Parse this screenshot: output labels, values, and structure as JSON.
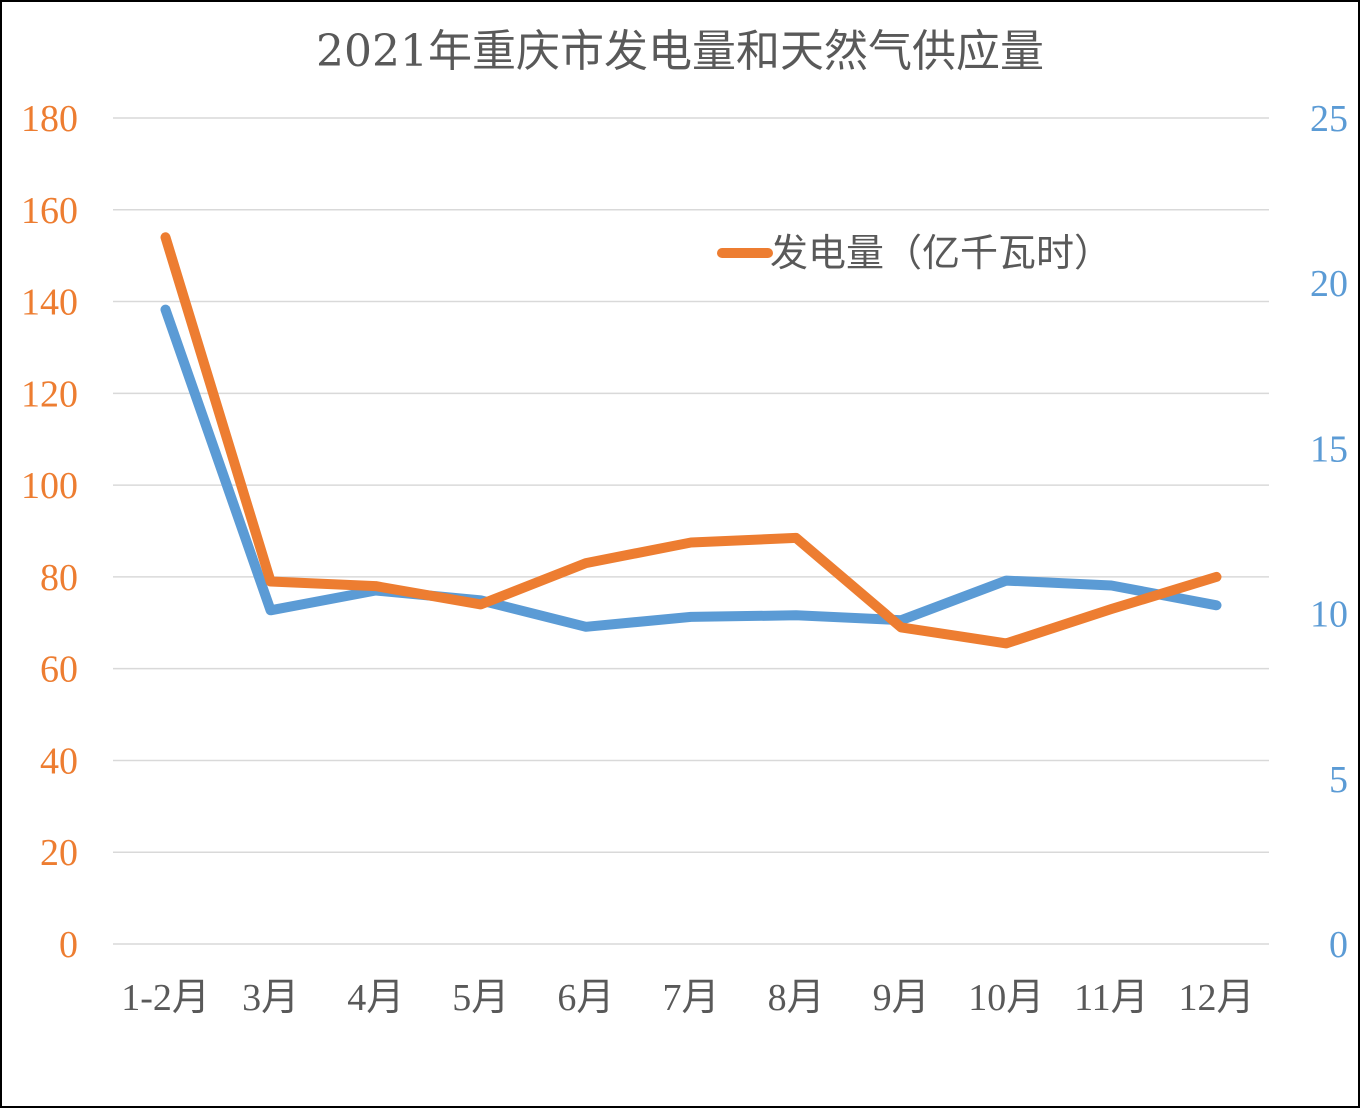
{
  "chart_data": {
    "type": "line",
    "title": "2021年重庆市发电量和天然气供应量",
    "categories": [
      "1-2月",
      "3月",
      "4月",
      "5月",
      "6月",
      "7月",
      "8月",
      "9月",
      "10月",
      "11月",
      "12月"
    ],
    "series": [
      {
        "name": "发电量（亿千瓦时）",
        "axis": "left",
        "color": "#ed7d31",
        "values": [
          154,
          79,
          78,
          74,
          83,
          87.5,
          88.5,
          69,
          65.5,
          73,
          80
        ]
      },
      {
        "axis": "right",
        "color": "#5b9bd5",
        "values": [
          19.2,
          10.1,
          10.7,
          10.4,
          9.6,
          9.9,
          9.95,
          9.8,
          11.0,
          10.85,
          10.25
        ]
      }
    ],
    "y_left": {
      "min": 0,
      "max": 180,
      "ticks": [
        0,
        20,
        40,
        60,
        80,
        100,
        120,
        140,
        160,
        180
      ],
      "color": "#ed7d31"
    },
    "y_right": {
      "min": 0,
      "max": 25,
      "ticks": [
        0,
        5,
        10,
        15,
        20,
        25
      ],
      "color": "#5b9bd5"
    },
    "grid": true,
    "legend_position": "top-right"
  }
}
